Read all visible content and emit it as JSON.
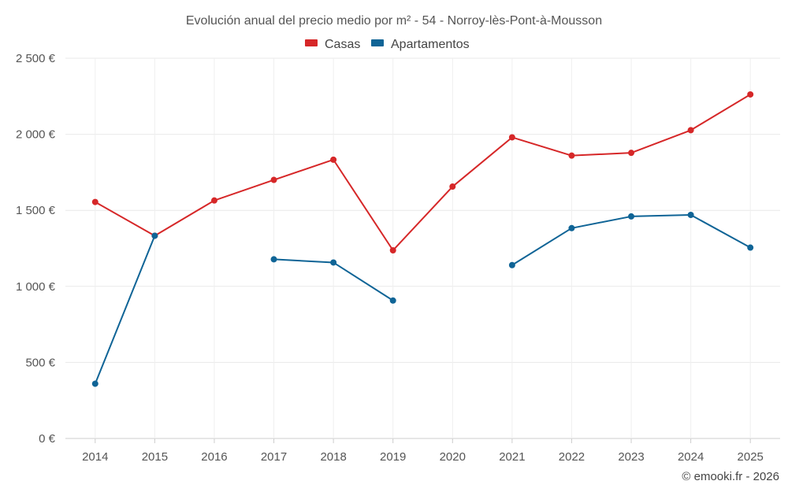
{
  "chart_data": {
    "type": "line",
    "title": "Evolución anual del precio medio por m² - 54 - Norroy-lès-Pont-à-Mousson",
    "xlabel": "",
    "ylabel": "",
    "categories": [
      "2014",
      "2015",
      "2016",
      "2017",
      "2018",
      "2019",
      "2020",
      "2021",
      "2022",
      "2023",
      "2024",
      "2025"
    ],
    "ylim": [
      0,
      2500
    ],
    "yticks": [
      0,
      500,
      1000,
      1500,
      2000,
      2500
    ],
    "ytick_labels": [
      "0 €",
      "500 €",
      "1 000 €",
      "1 500 €",
      "2 000 €",
      "2 500 €"
    ],
    "grid": true,
    "legend_position": "top-center",
    "series": [
      {
        "name": "Casas",
        "color": "#d62728",
        "values": [
          1555,
          1333,
          1565,
          1700,
          1833,
          1237,
          1656,
          1980,
          1860,
          1878,
          2027,
          2262
        ]
      },
      {
        "name": "Apartamentos",
        "color": "#0f6496",
        "values": [
          360,
          1333,
          null,
          1178,
          1157,
          907,
          null,
          1140,
          1383,
          1460,
          1470,
          1255
        ]
      }
    ]
  },
  "credit": "© emooki.fr - 2026"
}
